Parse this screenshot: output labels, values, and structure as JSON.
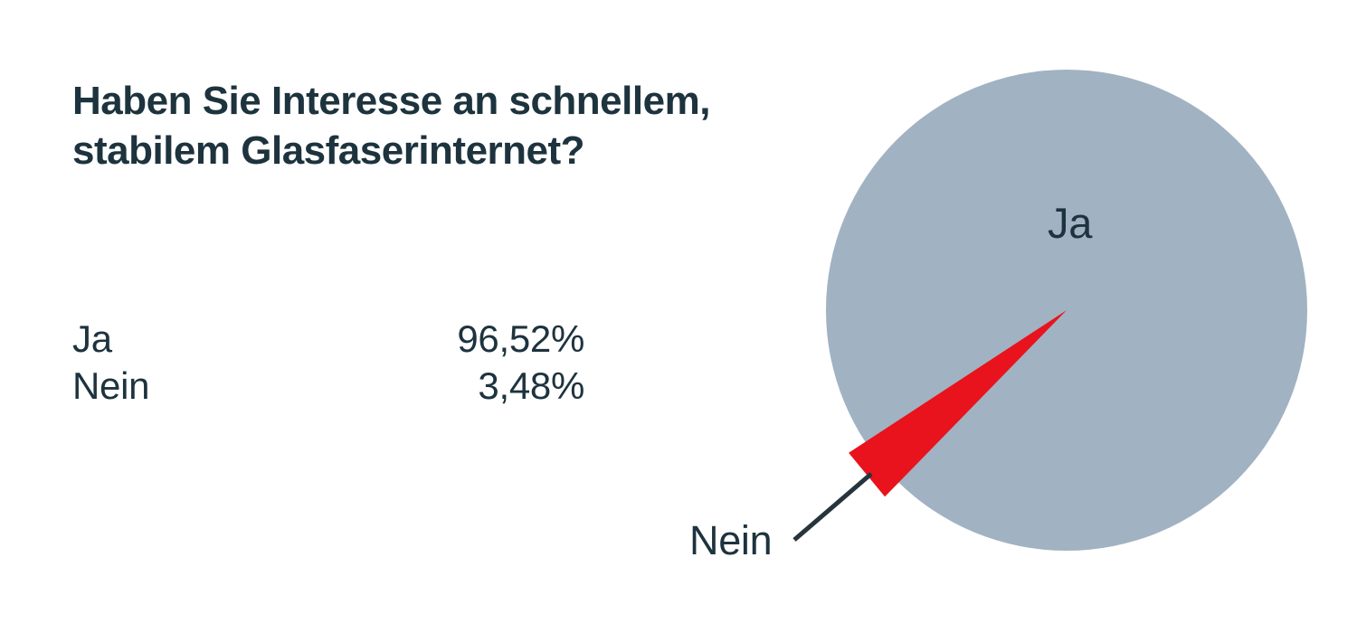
{
  "title": {
    "line1": "Haben Sie Interesse an schnellem,",
    "line2": "stabilem Glasfaserinternet?"
  },
  "legend": {
    "rows": [
      {
        "label": "Ja",
        "value": "96,52%"
      },
      {
        "label": "Nein",
        "value": "3,48%"
      }
    ]
  },
  "pie_labels": {
    "inside": "Ja",
    "callout": "Nein"
  },
  "chart_data": {
    "type": "pie",
    "title": "Haben Sie Interesse an schnellem, stabilem Glasfaserinternet?",
    "categories": [
      "Ja",
      "Nein"
    ],
    "values": [
      96.52,
      3.48
    ],
    "value_labels": [
      "96,52%",
      "3,48%"
    ],
    "legend_position": "left-table",
    "slice_styles": [
      {
        "name": "Ja",
        "color": "#a1b2c2",
        "label_position": "inside"
      },
      {
        "name": "Nein",
        "color": "#e8131c",
        "label_position": "outside-callout",
        "exploded": true
      }
    ]
  },
  "colors": {
    "text": "#1d333e",
    "ja_slice": "#a1b2c2",
    "nein_slice": "#e8131c",
    "callout_line": "#26343e",
    "background": "#ffffff"
  }
}
